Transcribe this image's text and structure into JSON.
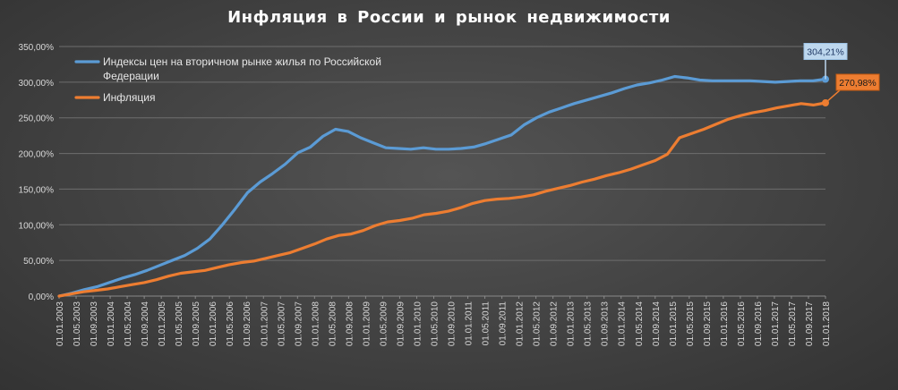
{
  "chart_data": {
    "type": "line",
    "title": "Инфляция  в России и рынок  недвижимости",
    "xlabel": "",
    "ylabel": "",
    "ylim": [
      0,
      350
    ],
    "y_ticks": [
      "0,00%",
      "50,00%",
      "100,00%",
      "150,00%",
      "200,00%",
      "250,00%",
      "300,00%",
      "350,00%"
    ],
    "x_ticks": [
      "01.01.2003",
      "01.05.2003",
      "01.09.2003",
      "01.01.2004",
      "01.05.2004",
      "01.09.2004",
      "01.01.2005",
      "01.05.2005",
      "01.09.2005",
      "01.01.2006",
      "01.05.2006",
      "01.09.2006",
      "01.01.2007",
      "01.05.2007",
      "01.09.2007",
      "01.01.2008",
      "01.05.2008",
      "01.09.2008",
      "01.01.2009",
      "01.05.2009",
      "01.09.2009",
      "01.01.2010",
      "01.05.2010",
      "01.09.2010",
      "01.01.2011",
      "01.05.2011",
      "01.09.2011",
      "01.01.2012",
      "01.05.2012",
      "01.09.2012",
      "01.01.2013",
      "01.05.2013",
      "01.09.2013",
      "01.01.2014",
      "01.05.2014",
      "01.09.2014",
      "01.01.2015",
      "01.05.2015",
      "01.09.2015",
      "01.01.2016",
      "01.05.2016",
      "01.09.2016",
      "01.01.2017",
      "01.05.2017",
      "01.09.2017",
      "01.01.2018"
    ],
    "grid": true,
    "legend_position": "top-left",
    "series": [
      {
        "name": "Индексы цен на вторичном рынке жилья по Российской Федерации",
        "legend_line1": "Индексы цен на вторичном рынке жилья по Российской",
        "legend_line2": "Федерации",
        "color": "#5b9bd5",
        "values": [
          0,
          4,
          9,
          13,
          19,
          25,
          30,
          36,
          43,
          50,
          57,
          67,
          80,
          100,
          122,
          145,
          160,
          172,
          185,
          201,
          209,
          224,
          234,
          231,
          222,
          215,
          208,
          207,
          206,
          208,
          206,
          206,
          207,
          209,
          214,
          220,
          226,
          240,
          250,
          258,
          264,
          270,
          275,
          280,
          285,
          291,
          296,
          299,
          303,
          308,
          306,
          303,
          302,
          302,
          302,
          302,
          301,
          300,
          301,
          302,
          302,
          304.21
        ],
        "end_label": "304,21%"
      },
      {
        "name": "Инфляция",
        "legend_line1": "Инфляция",
        "color": "#ed7d31",
        "values": [
          0,
          3,
          6,
          8,
          10,
          13,
          16,
          19,
          23,
          28,
          32,
          34,
          36,
          40,
          44,
          47,
          49,
          53,
          57,
          61,
          67,
          73,
          80,
          85,
          87,
          92,
          99,
          104,
          106,
          109,
          114,
          116,
          119,
          124,
          130,
          134,
          136,
          137,
          139,
          142,
          147,
          151,
          155,
          160,
          164,
          169,
          173,
          178,
          184,
          190,
          199,
          222,
          228,
          234,
          241,
          248,
          253,
          257,
          260,
          264,
          267,
          270,
          268,
          270.98
        ],
        "end_label": "270,98%"
      }
    ]
  }
}
